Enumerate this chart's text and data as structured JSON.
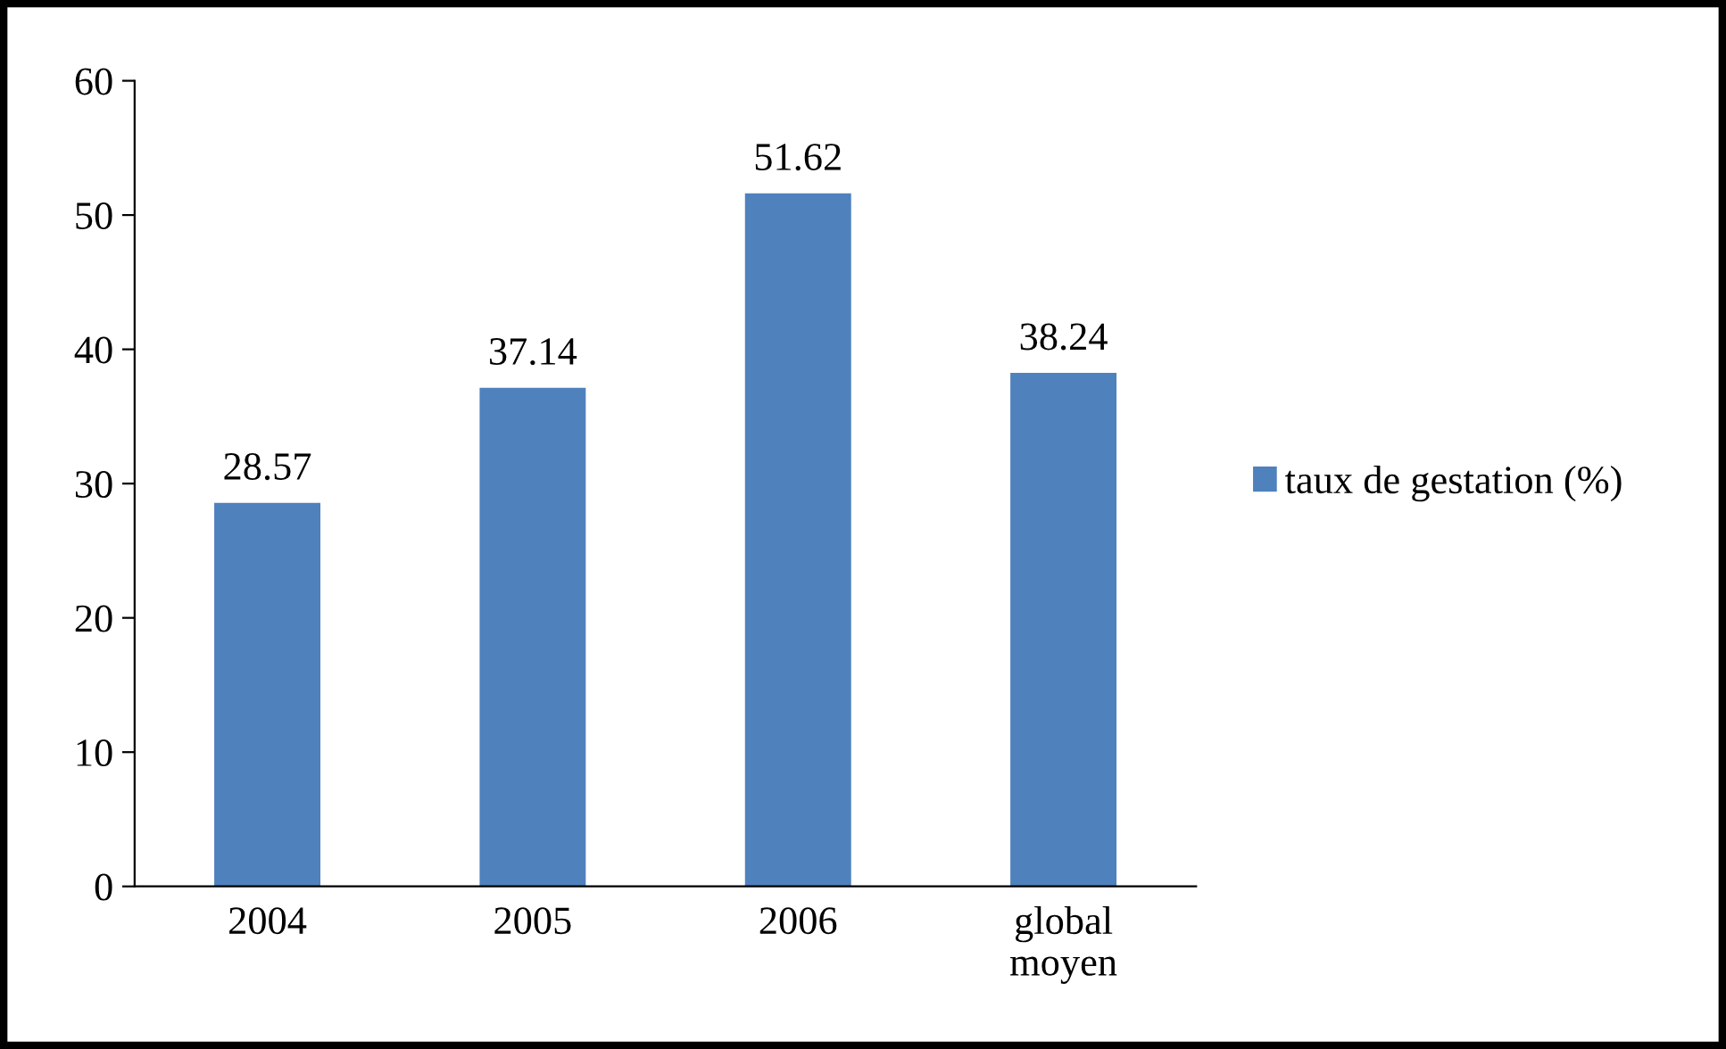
{
  "chart_data": {
    "type": "bar",
    "categories": [
      "2004",
      "2005",
      "2006",
      "global\nmoyen"
    ],
    "series": [
      {
        "name": "taux de gestation (%)",
        "color": "#4f81bd",
        "values": [
          28.57,
          37.14,
          51.62,
          38.24
        ]
      }
    ],
    "ylim": [
      0,
      60
    ],
    "yticks": [
      0,
      10,
      20,
      30,
      40,
      50,
      60
    ],
    "data_labels": true,
    "grid": false,
    "legend": "right"
  }
}
